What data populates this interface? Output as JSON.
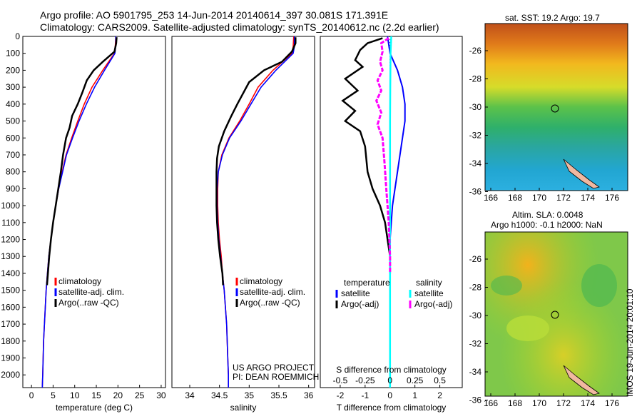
{
  "header": {
    "line1": "Argo profile: AO 5901795_253 14-Jun-2014 20140614_397 30.081S 171.391E",
    "line2": "Climatology: CARS2009. Satellite-adjusted climatology: synTS_20140612.nc (2.2d earlier)"
  },
  "colors": {
    "climatology": "#ff0000",
    "satellite": "#0000ff",
    "argo": "#000000",
    "sal_satellite": "#00ffff",
    "sal_argo": "#ff00ff"
  },
  "credits": {
    "project": "US ARGO PROJECT",
    "pi": "PI: DEAN ROEMMICH",
    "stamp": "IMOS 19-Jun-2014 20:01:10"
  },
  "legend_profile": [
    "climatology",
    "satellite-adj. clim.",
    "Argo(..raw -QC)"
  ],
  "legend_diff": {
    "t_head": "temperature",
    "s_head": "salinity",
    "t_items": [
      "satellite",
      "Argo(-adj)"
    ],
    "s_items": [
      "satellite",
      "Argo(-adj)"
    ]
  },
  "maps": {
    "sst_title": "sat. SST: 19.2 Argo: 19.7",
    "sla_title1": "Altim. SLA: 0.0048",
    "sla_title2": "Argo h1000: -0.1 h2000: NaN",
    "xticks": [
      "166",
      "168",
      "170",
      "172",
      "174",
      "176"
    ],
    "yticks_sst": [
      "-26",
      "-28",
      "-30",
      "-32",
      "-34",
      "-36"
    ],
    "yticks_sla": [
      "-26",
      "-28",
      "-30",
      "-32",
      "-34",
      "-36"
    ]
  },
  "chart_data": [
    {
      "type": "line",
      "xlabel": "temperature (deg C)",
      "xticks": [
        "0",
        "5",
        "10",
        "15",
        "20",
        "25",
        "30"
      ],
      "xlim": [
        -2,
        31
      ],
      "ylim": [
        2075,
        0
      ],
      "yticks": [
        "0",
        "100",
        "200",
        "300",
        "400",
        "500",
        "600",
        "700",
        "800",
        "900",
        "1000",
        "1100",
        "1200",
        "1300",
        "1400",
        "1500",
        "1600",
        "1700",
        "1800",
        "1900",
        "2000"
      ],
      "series": [
        {
          "name": "climatology",
          "points": [
            [
              19.5,
              0
            ],
            [
              19.4,
              50
            ],
            [
              19.2,
              100
            ],
            [
              16.5,
              200
            ],
            [
              14.0,
              300
            ],
            [
              12.2,
              400
            ],
            [
              10.7,
              500
            ],
            [
              9.3,
              600
            ],
            [
              8.0,
              700
            ],
            [
              7.1,
              800
            ],
            [
              6.3,
              900
            ],
            [
              5.6,
              1000
            ],
            [
              5.0,
              1100
            ],
            [
              4.5,
              1200
            ],
            [
              4.0,
              1300
            ],
            [
              3.7,
              1400
            ],
            [
              3.4,
              1500
            ],
            [
              3.2,
              1600
            ],
            [
              3.0,
              1700
            ],
            [
              2.8,
              1800
            ],
            [
              2.7,
              1900
            ],
            [
              2.6,
              2000
            ],
            [
              2.5,
              2075
            ]
          ]
        },
        {
          "name": "satellite-adj. clim.",
          "points": [
            [
              19.5,
              0
            ],
            [
              19.5,
              50
            ],
            [
              19.3,
              100
            ],
            [
              16.9,
              200
            ],
            [
              14.6,
              300
            ],
            [
              12.7,
              400
            ],
            [
              11.0,
              500
            ],
            [
              9.5,
              600
            ],
            [
              8.1,
              700
            ],
            [
              7.2,
              800
            ],
            [
              6.3,
              900
            ],
            [
              5.6,
              1000
            ],
            [
              5.0,
              1100
            ],
            [
              4.5,
              1200
            ],
            [
              4.0,
              1300
            ],
            [
              3.7,
              1400
            ],
            [
              3.4,
              1500
            ],
            [
              3.2,
              1600
            ],
            [
              3.0,
              1700
            ],
            [
              2.8,
              1800
            ],
            [
              2.7,
              1900
            ],
            [
              2.6,
              2000
            ],
            [
              2.5,
              2075
            ]
          ]
        },
        {
          "name": "Argo(..raw -QC)",
          "points": [
            [
              19.7,
              5
            ],
            [
              19.6,
              40
            ],
            [
              19.2,
              90
            ],
            [
              16.5,
              150
            ],
            [
              14.4,
              200
            ],
            [
              12.8,
              260
            ],
            [
              11.8,
              330
            ],
            [
              10.7,
              400
            ],
            [
              9.4,
              470
            ],
            [
              8.8,
              540
            ],
            [
              8.0,
              600
            ],
            [
              7.3,
              700
            ],
            [
              6.8,
              800
            ],
            [
              6.2,
              900
            ],
            [
              5.6,
              1000
            ],
            [
              5.0,
              1100
            ],
            [
              4.5,
              1200
            ],
            [
              4.1,
              1300
            ],
            [
              3.8,
              1400
            ],
            [
              3.6,
              1470
            ]
          ]
        }
      ]
    },
    {
      "type": "line",
      "xlabel": "salinity",
      "xticks": [
        "34",
        "34.5",
        "35",
        "35.5",
        "36"
      ],
      "xlim": [
        33.7,
        36.1
      ],
      "ylim": [
        2075,
        0
      ],
      "series": [
        {
          "name": "climatology",
          "points": [
            [
              35.75,
              0
            ],
            [
              35.74,
              60
            ],
            [
              35.72,
              100
            ],
            [
              35.4,
              200
            ],
            [
              35.15,
              300
            ],
            [
              35.0,
              400
            ],
            [
              34.84,
              500
            ],
            [
              34.66,
              600
            ],
            [
              34.54,
              700
            ],
            [
              34.48,
              800
            ],
            [
              34.47,
              900
            ],
            [
              34.47,
              1000
            ],
            [
              34.48,
              1100
            ],
            [
              34.5,
              1200
            ],
            [
              34.53,
              1300
            ],
            [
              34.55,
              1400
            ],
            [
              34.58,
              1500
            ],
            [
              34.6,
              1600
            ],
            [
              34.62,
              1700
            ],
            [
              34.63,
              1800
            ],
            [
              34.64,
              1900
            ],
            [
              34.65,
              2000
            ],
            [
              34.65,
              2075
            ]
          ]
        },
        {
          "name": "satellite-adj. clim.",
          "points": [
            [
              35.76,
              0
            ],
            [
              35.76,
              60
            ],
            [
              35.74,
              100
            ],
            [
              35.45,
              200
            ],
            [
              35.2,
              300
            ],
            [
              35.03,
              400
            ],
            [
              34.86,
              500
            ],
            [
              34.67,
              600
            ],
            [
              34.55,
              700
            ],
            [
              34.48,
              800
            ],
            [
              34.46,
              900
            ],
            [
              34.46,
              1000
            ],
            [
              34.47,
              1100
            ],
            [
              34.49,
              1200
            ],
            [
              34.52,
              1300
            ],
            [
              34.55,
              1400
            ],
            [
              34.58,
              1500
            ],
            [
              34.6,
              1600
            ],
            [
              34.62,
              1700
            ],
            [
              34.63,
              1800
            ],
            [
              34.64,
              1900
            ],
            [
              34.65,
              2000
            ],
            [
              34.65,
              2075
            ]
          ]
        },
        {
          "name": "Argo(..raw -QC)",
          "points": [
            [
              35.78,
              5
            ],
            [
              35.78,
              40
            ],
            [
              35.72,
              90
            ],
            [
              35.55,
              150
            ],
            [
              35.25,
              200
            ],
            [
              35.0,
              270
            ],
            [
              34.8,
              400
            ],
            [
              34.7,
              470
            ],
            [
              34.58,
              560
            ],
            [
              34.49,
              650
            ],
            [
              34.46,
              720
            ],
            [
              34.45,
              800
            ],
            [
              34.45,
              900
            ],
            [
              34.45,
              1000
            ],
            [
              34.46,
              1100
            ],
            [
              34.48,
              1200
            ],
            [
              34.51,
              1300
            ],
            [
              34.55,
              1400
            ],
            [
              34.56,
              1470
            ]
          ]
        }
      ]
    },
    {
      "type": "line",
      "xlabel": "T difference from climatology",
      "xlabel_top": "S difference from climatology",
      "xticks": [
        "-2",
        "-1",
        "0",
        "1",
        "2"
      ],
      "xticks_top": [
        "-0.5",
        "-0.25",
        "0",
        "0.25",
        "0.5"
      ],
      "xlim": [
        -2.8,
        2.9
      ],
      "ylim": [
        2075,
        0
      ],
      "series": [
        {
          "name": "temperature satellite",
          "points": [
            [
              -0.1,
              0
            ],
            [
              0,
              100
            ],
            [
              0.3,
              200
            ],
            [
              0.5,
              300
            ],
            [
              0.6,
              400
            ],
            [
              0.6,
              500
            ],
            [
              0.5,
              600
            ],
            [
              0.4,
              700
            ],
            [
              0.3,
              800
            ],
            [
              0.2,
              900
            ],
            [
              0.1,
              1000
            ],
            [
              0.05,
              1100
            ],
            [
              0,
              1200
            ],
            [
              0,
              2075
            ]
          ]
        },
        {
          "name": "temperature Argo(-adj)",
          "points": [
            [
              -0.3,
              10
            ],
            [
              -0.9,
              40
            ],
            [
              -1.2,
              80
            ],
            [
              -1.4,
              140
            ],
            [
              -1.1,
              180
            ],
            [
              -1.8,
              250
            ],
            [
              -1.3,
              320
            ],
            [
              -1.9,
              380
            ],
            [
              -1.4,
              440
            ],
            [
              -1.8,
              500
            ],
            [
              -1.2,
              560
            ],
            [
              -1.0,
              650
            ],
            [
              -0.9,
              800
            ],
            [
              -0.7,
              900
            ],
            [
              -0.4,
              1000
            ],
            [
              -0.2,
              1100
            ],
            [
              0,
              1300
            ],
            [
              0,
              1400
            ]
          ]
        },
        {
          "name": "salinity satellite",
          "points": [
            [
              0.05,
              0
            ],
            [
              0.02,
              100
            ],
            [
              0.01,
              300
            ],
            [
              0,
              500
            ],
            [
              0,
              1100
            ],
            [
              0,
              2075
            ]
          ]
        },
        {
          "name": "salinity Argo(-adj)",
          "points": [
            [
              -0.05,
              10
            ],
            [
              -0.35,
              40
            ],
            [
              -0.3,
              90
            ],
            [
              -0.4,
              150
            ],
            [
              -0.3,
              200
            ],
            [
              -0.5,
              260
            ],
            [
              -0.35,
              320
            ],
            [
              -0.55,
              380
            ],
            [
              -0.35,
              450
            ],
            [
              -0.5,
              520
            ],
            [
              -0.3,
              600
            ],
            [
              -0.22,
              750
            ],
            [
              -0.15,
              900
            ],
            [
              -0.05,
              1100
            ],
            [
              0,
              1300
            ],
            [
              0,
              1400
            ]
          ]
        }
      ]
    }
  ]
}
